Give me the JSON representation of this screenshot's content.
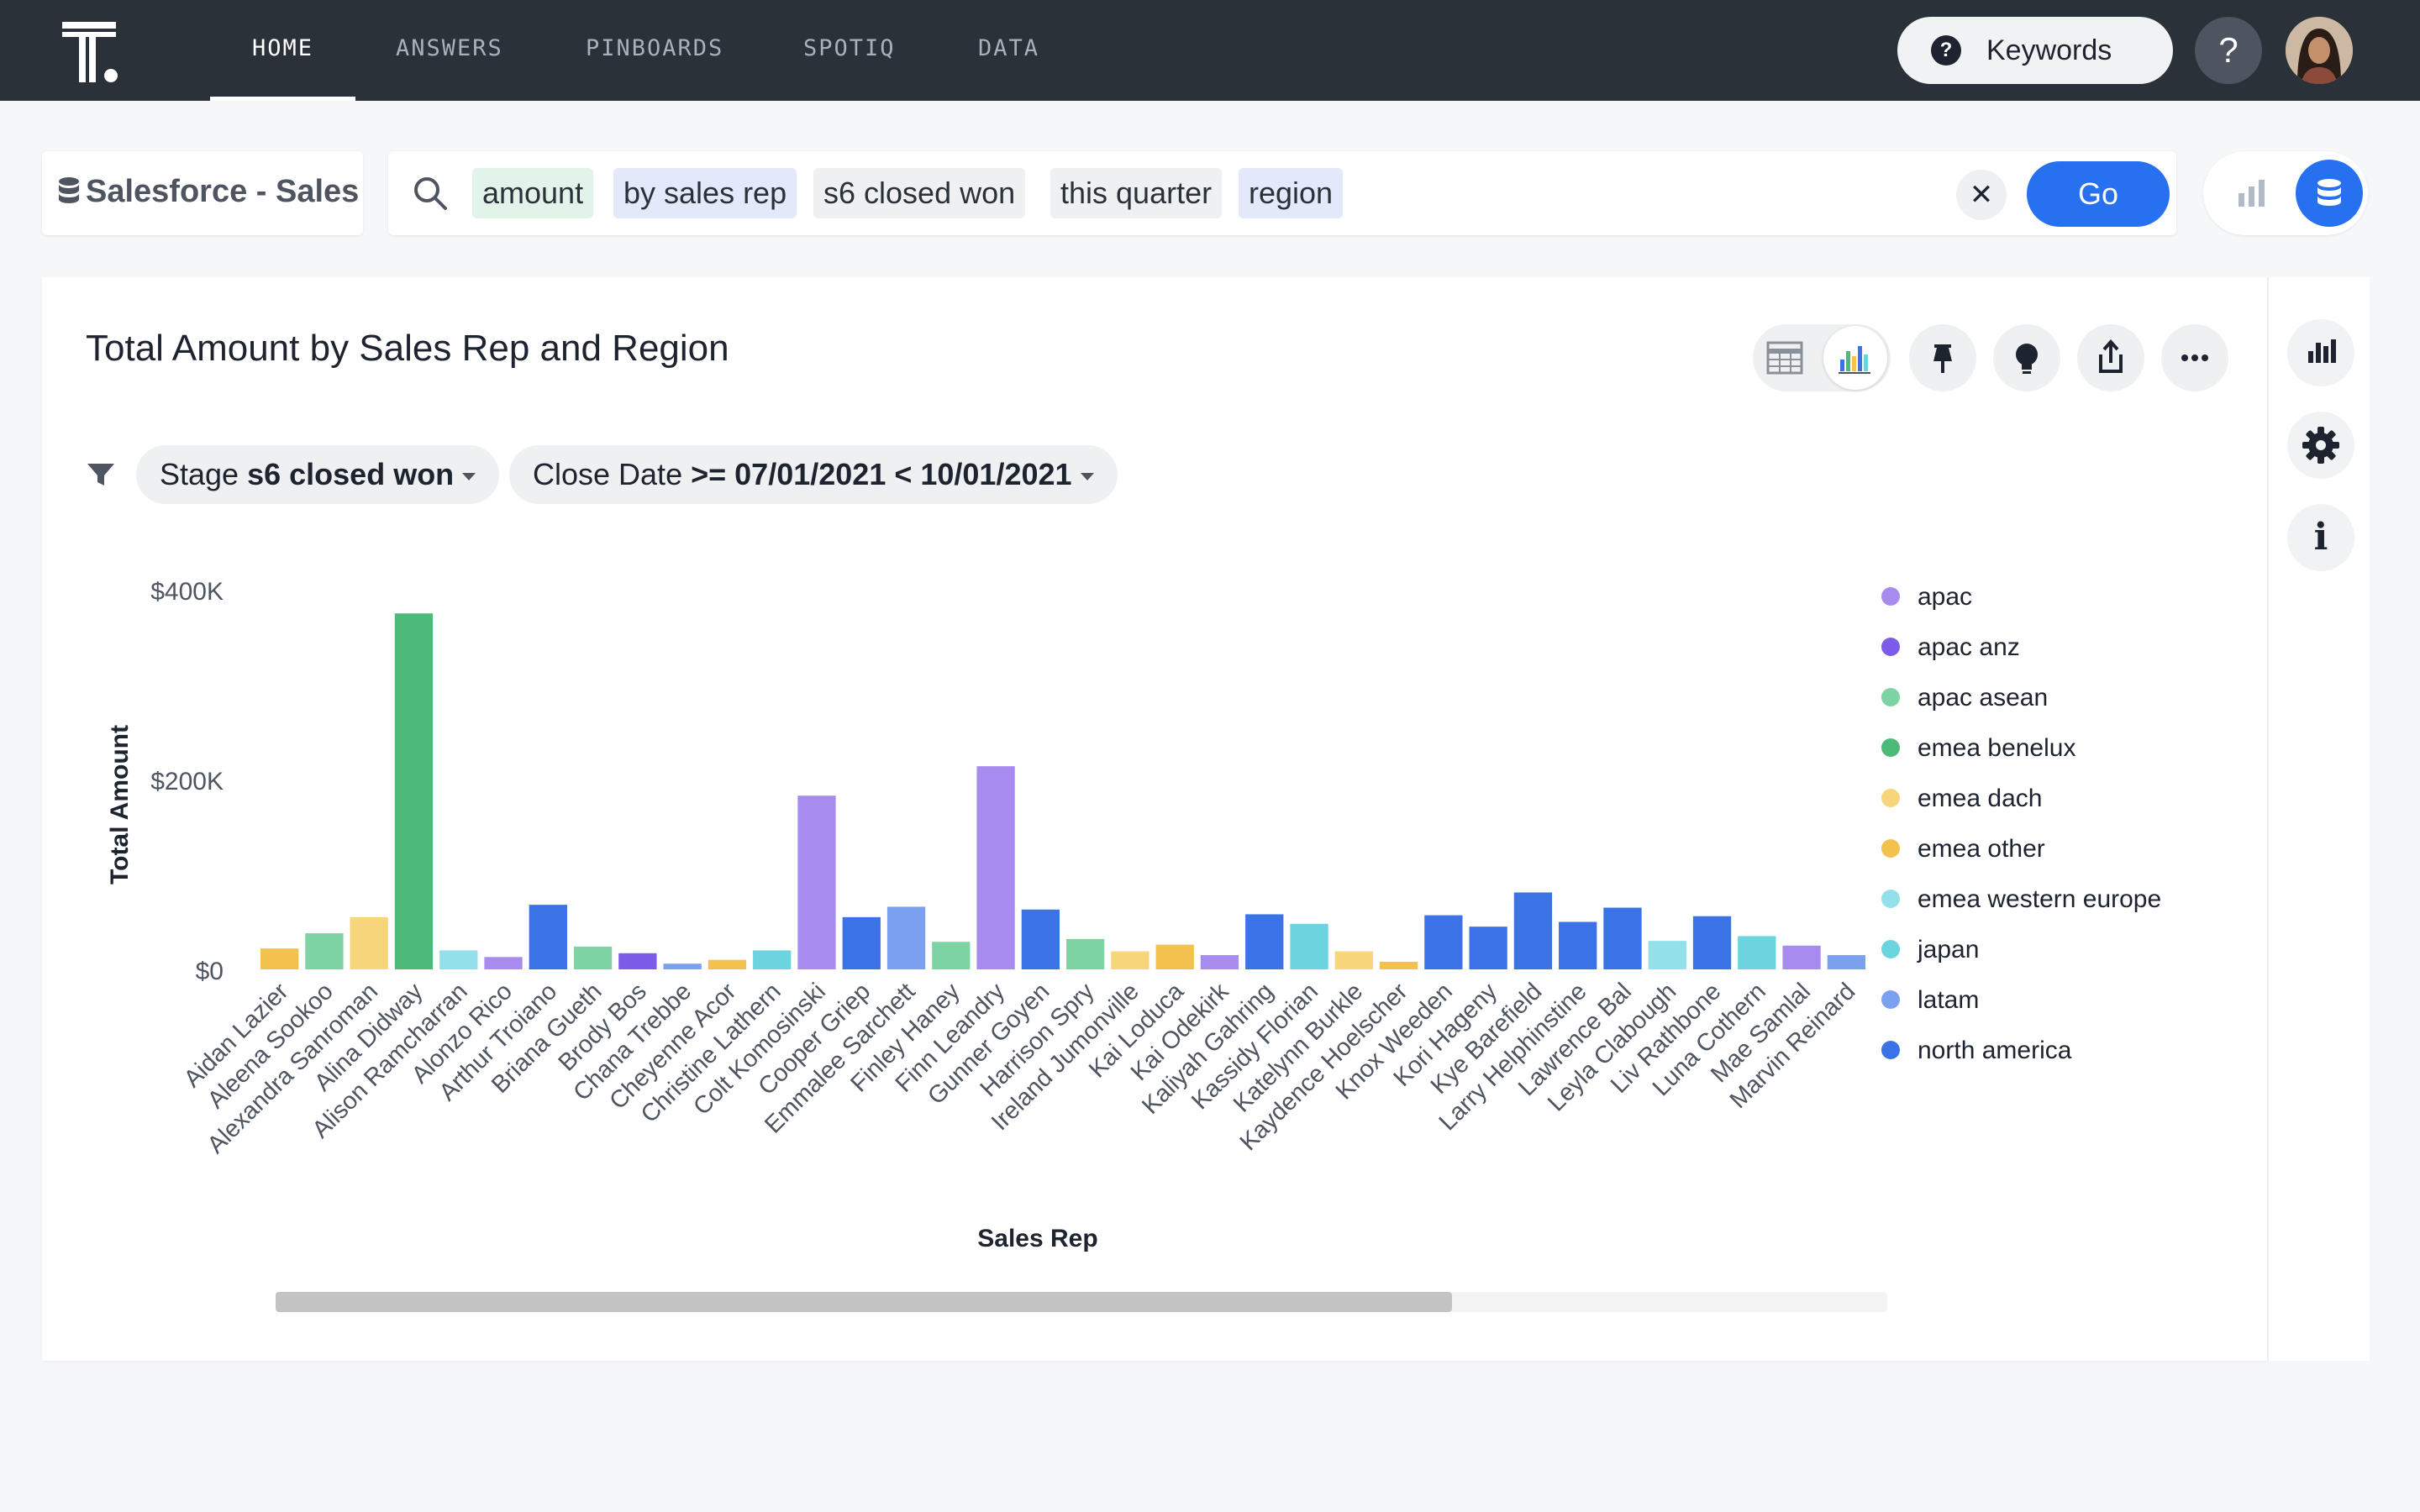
{
  "topnav": {
    "tabs": [
      {
        "label": "HOME",
        "active": true
      },
      {
        "label": "ANSWERS",
        "active": false
      },
      {
        "label": "PINBOARDS",
        "active": false
      },
      {
        "label": "SPOTIQ",
        "active": false
      },
      {
        "label": "DATA",
        "active": false
      }
    ],
    "keywords_label": "Keywords",
    "help_label": "?"
  },
  "search": {
    "source_label": "Salesforce - Sales",
    "tokens": [
      {
        "text": "amount",
        "kind": "measure"
      },
      {
        "text": "by sales rep",
        "kind": "attribute"
      },
      {
        "text": "s6 closed won",
        "kind": "filter"
      },
      {
        "text": "this quarter",
        "kind": "filter"
      },
      {
        "text": "region",
        "kind": "attribute"
      }
    ],
    "clear_label": "✕",
    "go_label": "Go"
  },
  "answer": {
    "title": "Total Amount by Sales Rep and Region",
    "filters": [
      {
        "label": "Stage",
        "value": "s6 closed won"
      },
      {
        "label": "Close Date",
        "value": ">= 07/01/2021 < 10/01/2021"
      }
    ],
    "toolbar_icons": [
      "table-icon",
      "chart-icon",
      "pin-icon",
      "lightbulb-icon",
      "share-icon",
      "more-icon"
    ]
  },
  "rail": {
    "info_glyph": "i",
    "icons": [
      "chart-icon",
      "gear-icon",
      "info-icon"
    ]
  },
  "colors": {
    "accent": "#2770ef",
    "nav_bg": "#2b3139"
  },
  "scrollbar": {
    "visible_fraction": 0.73
  },
  "chart_data": {
    "type": "bar",
    "title": "Total Amount by Sales Rep and Region",
    "xlabel": "Sales Rep",
    "ylabel": "Total Amount",
    "ylim": [
      0,
      400000
    ],
    "yticks": [
      {
        "value": 0,
        "label": "$0"
      },
      {
        "value": 200000,
        "label": "$200K"
      },
      {
        "value": 400000,
        "label": "$400K"
      }
    ],
    "legend_position": "right",
    "legend": [
      {
        "name": "apac",
        "color": "#a78bef"
      },
      {
        "name": "apac anz",
        "color": "#7b5be8"
      },
      {
        "name": "apac asean",
        "color": "#7ed3a4"
      },
      {
        "name": "emea benelux",
        "color": "#4dba7a"
      },
      {
        "name": "emea dach",
        "color": "#f7d57a"
      },
      {
        "name": "emea other",
        "color": "#f2c14e"
      },
      {
        "name": "emea western europe",
        "color": "#94e0ea"
      },
      {
        "name": "japan",
        "color": "#6cd4df"
      },
      {
        "name": "latam",
        "color": "#7ba0ef"
      },
      {
        "name": "north america",
        "color": "#3b72e6"
      }
    ],
    "bars": [
      {
        "rep": "Aidan Lazier",
        "region": "emea other",
        "value": 22000
      },
      {
        "rep": "Aleena Sookoo",
        "region": "apac asean",
        "value": 38000
      },
      {
        "rep": "Alexandra Sanroman",
        "region": "emea dach",
        "value": 55000
      },
      {
        "rep": "Alina Didway",
        "region": "emea benelux",
        "value": 375000
      },
      {
        "rep": "Alison Ramcharran",
        "region": "emea western europe",
        "value": 20000
      },
      {
        "rep": "Alonzo Rico",
        "region": "apac",
        "value": 13000
      },
      {
        "rep": "Arthur Troiano",
        "region": "north america",
        "value": 68000
      },
      {
        "rep": "Briana Gueth",
        "region": "apac asean",
        "value": 24000
      },
      {
        "rep": "Brody Bos",
        "region": "apac anz",
        "value": 17000
      },
      {
        "rep": "Chana Trebbe",
        "region": "latam",
        "value": 6000
      },
      {
        "rep": "Cheyenne Acor",
        "region": "emea other",
        "value": 10000
      },
      {
        "rep": "Christine Lathern",
        "region": "japan",
        "value": 20000
      },
      {
        "rep": "Colt Komosinski",
        "region": "apac",
        "value": 183000
      },
      {
        "rep": "Cooper Griep",
        "region": "north america",
        "value": 55000
      },
      {
        "rep": "Emmalee Sarchett",
        "region": "latam",
        "value": 66000
      },
      {
        "rep": "Finley Haney",
        "region": "apac asean",
        "value": 29000
      },
      {
        "rep": "Finn Leandry",
        "region": "apac",
        "value": 214000
      },
      {
        "rep": "Gunner Goyen",
        "region": "north america",
        "value": 63000
      },
      {
        "rep": "Harrison Spry",
        "region": "apac asean",
        "value": 32000
      },
      {
        "rep": "Ireland Jumonville",
        "region": "emea dach",
        "value": 19000
      },
      {
        "rep": "Kai Loduca",
        "region": "emea other",
        "value": 26000
      },
      {
        "rep": "Kai Odekirk",
        "region": "apac",
        "value": 15000
      },
      {
        "rep": "Kaliyah Gahring",
        "region": "north america",
        "value": 58000
      },
      {
        "rep": "Kassidy Florian",
        "region": "japan",
        "value": 48000
      },
      {
        "rep": "Katelynn Burkle",
        "region": "emea dach",
        "value": 19000
      },
      {
        "rep": "Kaydence Hoelscher",
        "region": "emea other",
        "value": 8000
      },
      {
        "rep": "Knox Weeden",
        "region": "north america",
        "value": 57000
      },
      {
        "rep": "Kori Hageny",
        "region": "north america",
        "value": 45000
      },
      {
        "rep": "Kye Barefield",
        "region": "north america",
        "value": 81000
      },
      {
        "rep": "Larry Helphinstine",
        "region": "north america",
        "value": 50000
      },
      {
        "rep": "Lawrence Bal",
        "region": "north america",
        "value": 65000
      },
      {
        "rep": "Leyla Clabough",
        "region": "emea western europe",
        "value": 30000
      },
      {
        "rep": "Liv Rathbone",
        "region": "north america",
        "value": 56000
      },
      {
        "rep": "Luna Cothern",
        "region": "japan",
        "value": 35000
      },
      {
        "rep": "Mae Samlal",
        "region": "apac",
        "value": 25000
      },
      {
        "rep": "Marvin Reinard",
        "region": "latam",
        "value": 15000
      }
    ]
  }
}
